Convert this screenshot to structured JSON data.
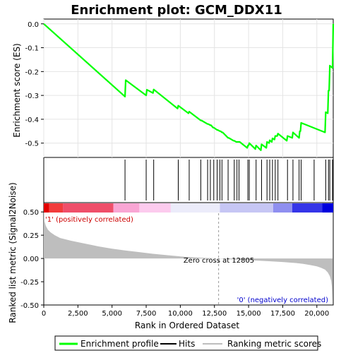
{
  "chart_data": {
    "type": "line",
    "title": "Enrichment plot: GCM_DDX11",
    "es_ylabel": "Enrichment score (ES)",
    "metric_ylabel": "Ranked list metric (Signal2Noise)",
    "xlabel": "Rank in Ordered Dataset",
    "xlim": [
      0,
      21200
    ],
    "es_ylim": [
      -0.56,
      0.02
    ],
    "metric_ylim": [
      -0.5,
      0.6
    ],
    "x_ticks": [
      0,
      2500,
      5000,
      7500,
      10000,
      12500,
      15000,
      17500,
      20000
    ],
    "x_tick_labels": [
      "0",
      "2,500",
      "5,000",
      "7,500",
      "10,000",
      "12,500",
      "15,000",
      "17,500",
      "20,000"
    ],
    "es_ticks": [
      0.0,
      -0.1,
      -0.2,
      -0.3,
      -0.4,
      -0.5
    ],
    "es_tick_labels": [
      "0.0",
      "-0.1",
      "-0.2",
      "-0.3",
      "-0.4",
      "-0.5"
    ],
    "metric_ticks": [
      0.5,
      0.25,
      0.0,
      -0.25,
      -0.5
    ],
    "metric_tick_labels": [
      "0.50",
      "0.25",
      "0.00",
      "-0.25",
      "-0.50"
    ],
    "enrichment_profile": {
      "name": "Enrichment profile",
      "color": "#00ff00",
      "x": [
        0,
        5950,
        6000,
        7500,
        7550,
        8000,
        8050,
        9800,
        9850,
        10600,
        10650,
        11500,
        11550,
        12000,
        12050,
        12200,
        12250,
        12400,
        12450,
        12700,
        12750,
        12900,
        12950,
        13050,
        13100,
        13500,
        13550,
        13900,
        13950,
        14100,
        14150,
        14300,
        14350,
        14900,
        14950,
        15000,
        15050,
        15500,
        15550,
        15900,
        15950,
        16300,
        16350,
        16500,
        16550,
        16700,
        16750,
        16900,
        16950,
        17100,
        17150,
        17800,
        17850,
        18200,
        18250,
        18700,
        18750,
        18800,
        18850,
        20600,
        20650,
        20800,
        20850,
        20900,
        20950,
        21150,
        21200
      ],
      "y": [
        0.0,
        -0.305,
        -0.236,
        -0.3,
        -0.276,
        -0.29,
        -0.275,
        -0.355,
        -0.343,
        -0.375,
        -0.368,
        -0.405,
        -0.405,
        -0.42,
        -0.42,
        -0.425,
        -0.425,
        -0.435,
        -0.435,
        -0.445,
        -0.445,
        -0.45,
        -0.45,
        -0.455,
        -0.455,
        -0.478,
        -0.478,
        -0.49,
        -0.49,
        -0.495,
        -0.495,
        -0.495,
        -0.495,
        -0.52,
        -0.51,
        -0.51,
        -0.5,
        -0.525,
        -0.51,
        -0.53,
        -0.505,
        -0.52,
        -0.495,
        -0.5,
        -0.488,
        -0.495,
        -0.48,
        -0.485,
        -0.47,
        -0.47,
        -0.46,
        -0.49,
        -0.47,
        -0.478,
        -0.455,
        -0.478,
        -0.45,
        -0.45,
        -0.415,
        -0.455,
        -0.37,
        -0.375,
        -0.28,
        -0.28,
        -0.175,
        -0.185,
        0.0
      ]
    },
    "hits": {
      "name": "Hits",
      "positions": [
        5950,
        7500,
        8050,
        9850,
        10650,
        11500,
        12000,
        12200,
        12450,
        12700,
        12900,
        13050,
        13500,
        13950,
        14150,
        14300,
        14950,
        15050,
        15550,
        15950,
        16350,
        16550,
        16750,
        16950,
        17150,
        17850,
        18250,
        18700,
        18850,
        19800,
        20650,
        20850,
        20950,
        21150
      ]
    },
    "ranking_metric": {
      "name": "Ranking metric scores",
      "color": "#bebebe",
      "x": [
        0,
        50,
        150,
        300,
        500,
        800,
        1200,
        2000,
        3000,
        4000,
        5000,
        6000,
        7000,
        8000,
        9000,
        10000,
        11000,
        12000,
        12805,
        13500,
        14500,
        15500,
        16500,
        17500,
        18500,
        19000,
        19500,
        20000,
        20300,
        20600,
        20800,
        20950,
        21050,
        21100,
        21150
      ],
      "y": [
        0.56,
        0.4,
        0.35,
        0.31,
        0.28,
        0.25,
        0.22,
        0.19,
        0.16,
        0.13,
        0.105,
        0.085,
        0.068,
        0.05,
        0.036,
        0.022,
        0.012,
        0.004,
        0.0,
        -0.008,
        -0.015,
        -0.022,
        -0.03,
        -0.038,
        -0.05,
        -0.058,
        -0.07,
        -0.085,
        -0.1,
        -0.12,
        -0.15,
        -0.19,
        -0.24,
        -0.3,
        -0.46
      ]
    },
    "zero_cross": {
      "rank": 12805,
      "label": "Zero cross at 12805"
    },
    "pos_label": "'1' (positively correlated)",
    "neg_label": "'0' (negatively correlated)",
    "pos_color": "#cc0000",
    "neg_color": "#0000cc",
    "heat_colors": [
      "#e20000",
      "#f23c3c",
      "#ef4f6a",
      "#f9a6d4",
      "#fccbee",
      "#ececfa",
      "#c6c6f4",
      "#8f8ff0",
      "#3535e8",
      "#0000dd"
    ],
    "legend": {
      "profile": "Enrichment profile",
      "hits": "Hits",
      "metric": "Ranking metric scores"
    }
  }
}
